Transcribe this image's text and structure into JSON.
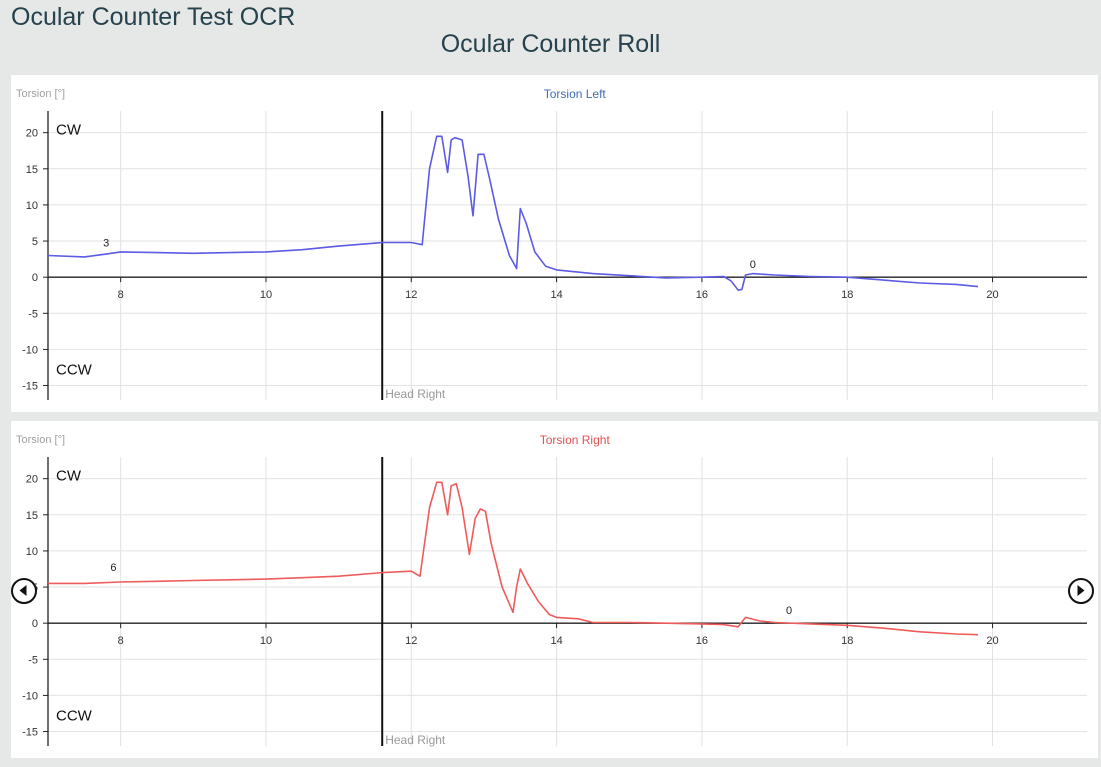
{
  "app_title": "Ocular Counter Test OCR",
  "chart_title": "Ocular Counter Roll",
  "navigation": {
    "prev_icon": "chevron-left-icon",
    "next_icon": "chevron-right-icon"
  },
  "colors": {
    "left": "#5b5be6",
    "right": "#ef5b5b",
    "left_title": "#3f6fb5",
    "right_title": "#e05050"
  },
  "chart_data": [
    {
      "type": "line",
      "title": "Torsion Left",
      "ylabel": "Torsion [°]",
      "xlim": [
        7.0,
        21.3
      ],
      "ylim": [
        -17,
        23
      ],
      "xticks": [
        8,
        10,
        12,
        14,
        16,
        18,
        20
      ],
      "yticks": [
        -15,
        -10,
        -5,
        0,
        5,
        10,
        15,
        20
      ],
      "grid": true,
      "region_labels": {
        "top": "CW",
        "bottom": "CCW"
      },
      "marker": {
        "x": 11.6,
        "label": "Head Right"
      },
      "annotations": [
        {
          "x": 7.8,
          "y": 3,
          "text": "3"
        },
        {
          "x": 16.7,
          "y": 0,
          "text": "0"
        }
      ],
      "series": [
        {
          "color": "#5b5be6",
          "x": [
            7.0,
            7.5,
            7.8,
            8.0,
            8.5,
            9.0,
            9.5,
            10.0,
            10.5,
            11.0,
            11.6,
            12.0,
            12.15,
            12.25,
            12.35,
            12.42,
            12.5,
            12.55,
            12.6,
            12.7,
            12.78,
            12.85,
            12.92,
            13.0,
            13.08,
            13.2,
            13.35,
            13.45,
            13.5,
            13.58,
            13.7,
            13.85,
            14.0,
            14.5,
            15.0,
            15.5,
            16.0,
            16.3,
            16.4,
            16.5,
            16.55,
            16.6,
            16.7,
            17.0,
            17.5,
            18.0,
            18.5,
            19.0,
            19.5,
            19.8
          ],
          "y": [
            3.0,
            2.8,
            3.2,
            3.5,
            3.4,
            3.3,
            3.4,
            3.5,
            3.8,
            4.3,
            4.8,
            4.8,
            4.5,
            15,
            19.5,
            19.5,
            14.5,
            19.0,
            19.3,
            19.0,
            14.0,
            8.5,
            17.0,
            17.0,
            13.5,
            8.0,
            3.0,
            1.2,
            9.5,
            7.5,
            3.5,
            1.5,
            1.0,
            0.5,
            0.2,
            -0.1,
            0,
            0.1,
            -0.5,
            -1.8,
            -1.7,
            0.3,
            0.5,
            0.3,
            0.1,
            0,
            -0.4,
            -0.8,
            -1.0,
            -1.3
          ]
        }
      ]
    },
    {
      "type": "line",
      "title": "Torsion Right",
      "ylabel": "Torsion [°]",
      "xlim": [
        7.0,
        21.3
      ],
      "ylim": [
        -17,
        23
      ],
      "xticks": [
        8,
        10,
        12,
        14,
        16,
        18,
        20
      ],
      "yticks": [
        -15,
        -10,
        -5,
        0,
        5,
        10,
        15,
        20
      ],
      "grid": true,
      "region_labels": {
        "top": "CW",
        "bottom": "CCW"
      },
      "marker": {
        "x": 11.6,
        "label": "Head Right"
      },
      "annotations": [
        {
          "x": 7.9,
          "y": 6,
          "text": "6"
        },
        {
          "x": 17.2,
          "y": 0,
          "text": "0"
        }
      ],
      "series": [
        {
          "color": "#ef5b5b",
          "x": [
            7.0,
            7.5,
            8.0,
            8.5,
            9.0,
            9.5,
            10.0,
            10.5,
            11.0,
            11.6,
            12.0,
            12.12,
            12.25,
            12.35,
            12.42,
            12.5,
            12.55,
            12.62,
            12.7,
            12.8,
            12.88,
            12.95,
            13.02,
            13.1,
            13.25,
            13.4,
            13.45,
            13.5,
            13.6,
            13.75,
            13.9,
            14.0,
            14.3,
            14.5,
            15.0,
            15.5,
            16.0,
            16.3,
            16.5,
            16.6,
            16.8,
            17.0,
            17.5,
            18.0,
            18.5,
            19.0,
            19.5,
            19.8
          ],
          "y": [
            5.5,
            5.5,
            5.7,
            5.8,
            5.9,
            6.0,
            6.1,
            6.3,
            6.5,
            7.0,
            7.2,
            6.5,
            16.0,
            19.5,
            19.5,
            15.0,
            19.0,
            19.3,
            16.0,
            9.5,
            14.5,
            15.8,
            15.5,
            11.0,
            5.0,
            1.5,
            5.0,
            7.5,
            5.5,
            3.0,
            1.2,
            0.8,
            0.6,
            0.1,
            0.1,
            0,
            -0.1,
            -0.2,
            -0.5,
            0.8,
            0.3,
            0.1,
            -0.1,
            -0.3,
            -0.7,
            -1.2,
            -1.5,
            -1.6
          ]
        }
      ]
    }
  ]
}
